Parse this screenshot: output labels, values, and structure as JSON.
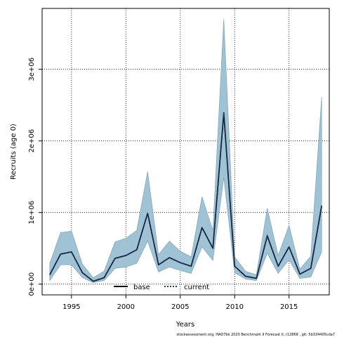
{
  "chart_data": {
    "type": "line",
    "title": "",
    "xlabel": "Years",
    "ylabel": "Recruits (age 0)",
    "xlim": [
      1992.3,
      2018.7
    ],
    "ylim": [
      -150000,
      3850000
    ],
    "x_ticks": [
      1995,
      2000,
      2005,
      2010,
      2015
    ],
    "x_tick_labels": [
      "1995",
      "2000",
      "2005",
      "2010",
      "2015"
    ],
    "y_ticks": [
      0,
      1000000,
      2000000,
      3000000
    ],
    "y_tick_labels": [
      "0e+00",
      "1e+06",
      "2e+06",
      "3e+06"
    ],
    "grid": true,
    "legend_position": "bottom",
    "x": [
      1993,
      1994,
      1995,
      1996,
      1997,
      1998,
      1999,
      2000,
      2001,
      2002,
      2003,
      2004,
      2005,
      2006,
      2007,
      2008,
      2009,
      2010,
      2011,
      2012,
      2013,
      2014,
      2015,
      2016,
      2017,
      2018
    ],
    "series": [
      {
        "name": "base",
        "style": "solid",
        "color": "#000000",
        "values": [
          130000,
          420000,
          450000,
          160000,
          40000,
          90000,
          360000,
          400000,
          480000,
          990000,
          270000,
          370000,
          300000,
          250000,
          790000,
          500000,
          2380000,
          250000,
          110000,
          80000,
          670000,
          250000,
          520000,
          140000,
          220000,
          1090000
        ]
      },
      {
        "name": "current",
        "style": "dotted",
        "color": "#1f3a6e",
        "values": [
          130000,
          420000,
          450000,
          160000,
          40000,
          90000,
          360000,
          400000,
          480000,
          990000,
          270000,
          370000,
          300000,
          250000,
          790000,
          500000,
          2400000,
          250000,
          110000,
          80000,
          680000,
          250000,
          520000,
          140000,
          220000,
          1100000
        ]
      }
    ],
    "band": {
      "color": "#9fc3d5",
      "lower": [
        50000,
        270000,
        270000,
        90000,
        20000,
        50000,
        220000,
        240000,
        290000,
        600000,
        170000,
        240000,
        190000,
        150000,
        520000,
        330000,
        1490000,
        160000,
        70000,
        50000,
        430000,
        150000,
        340000,
        80000,
        100000,
        450000
      ],
      "upper": [
        290000,
        720000,
        740000,
        280000,
        90000,
        180000,
        590000,
        640000,
        750000,
        1570000,
        410000,
        600000,
        460000,
        380000,
        1220000,
        750000,
        3700000,
        380000,
        180000,
        130000,
        1060000,
        400000,
        820000,
        210000,
        390000,
        2610000
      ]
    }
  },
  "footer_text": "stockassessment.org, HAD7bk 2020 Benchmark II Forecast II, r12868 , git: 5b334405cda7"
}
